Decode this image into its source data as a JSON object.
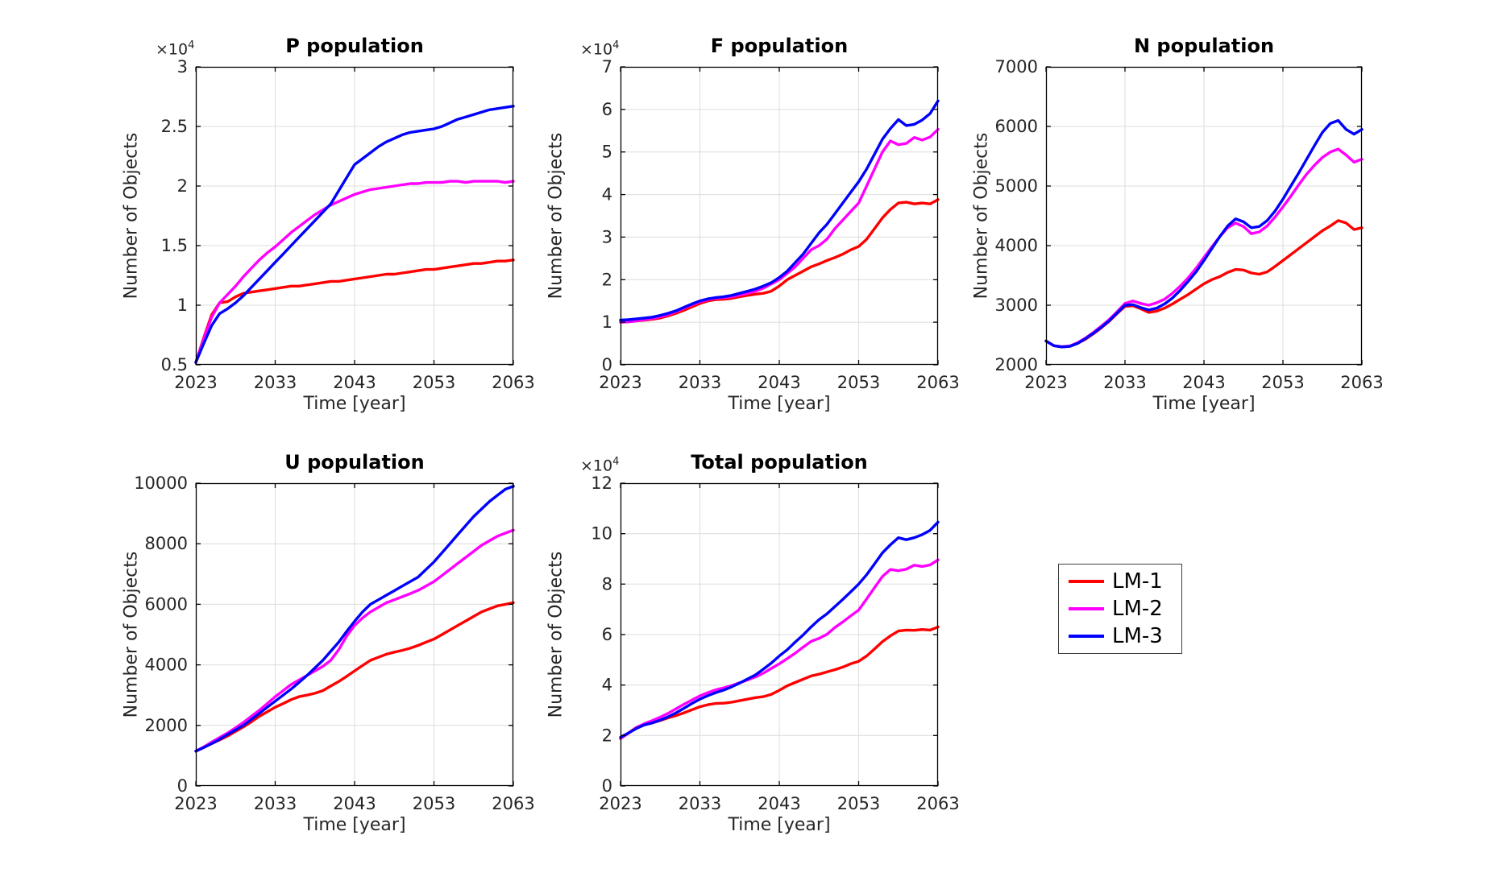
{
  "figure": {
    "background": "#ffffff"
  },
  "colors": {
    "lm1": "#ff0000",
    "lm2": "#ff00ff",
    "lm3": "#0000ff",
    "grid": "#dcdcdc",
    "axis": "#000000",
    "tick_text": "#262626"
  },
  "legend": {
    "entries": [
      {
        "label": "LM-1",
        "color": "#ff0000"
      },
      {
        "label": "LM-2",
        "color": "#ff00ff"
      },
      {
        "label": "LM-3",
        "color": "#0000ff"
      }
    ]
  },
  "chart_data": [
    {
      "id": "p-population",
      "type": "line",
      "title": "P population",
      "xlabel": "Time [year]",
      "ylabel": "Number of Objects",
      "scale_base": "×10",
      "scale_exp": "4",
      "y_unit_multiplier": 10000,
      "x": {
        "start": 2023,
        "end": 2063,
        "step": 1
      },
      "xticks": [
        2023,
        2033,
        2043,
        2053,
        2063
      ],
      "xtick_labels": [
        "2023",
        "2033",
        "2043",
        "2053",
        "2063"
      ],
      "ylim": [
        0.5,
        3
      ],
      "yticks": [
        0.5,
        1,
        1.5,
        2,
        2.5,
        3
      ],
      "ytick_labels": [
        "0.5",
        "1",
        "1.5",
        "2",
        "2.5",
        "3"
      ],
      "grid": true,
      "legend_position": "none",
      "series": [
        {
          "name": "LM-1",
          "color": "#ff0000",
          "values": [
            0.52,
            0.73,
            0.92,
            1.02,
            1.03,
            1.07,
            1.1,
            1.11,
            1.12,
            1.13,
            1.14,
            1.15,
            1.16,
            1.16,
            1.17,
            1.18,
            1.19,
            1.2,
            1.2,
            1.21,
            1.22,
            1.23,
            1.24,
            1.25,
            1.26,
            1.26,
            1.27,
            1.28,
            1.29,
            1.3,
            1.3,
            1.31,
            1.32,
            1.33,
            1.34,
            1.35,
            1.35,
            1.36,
            1.37,
            1.37,
            1.38
          ]
        },
        {
          "name": "LM-2",
          "color": "#ff00ff",
          "values": [
            0.52,
            0.72,
            0.9,
            1.02,
            1.09,
            1.16,
            1.24,
            1.31,
            1.38,
            1.44,
            1.49,
            1.55,
            1.61,
            1.66,
            1.71,
            1.76,
            1.8,
            1.84,
            1.87,
            1.9,
            1.93,
            1.95,
            1.97,
            1.98,
            1.99,
            2.0,
            2.01,
            2.02,
            2.02,
            2.03,
            2.03,
            2.03,
            2.04,
            2.04,
            2.03,
            2.04,
            2.04,
            2.04,
            2.04,
            2.03,
            2.04
          ]
        },
        {
          "name": "LM-3",
          "color": "#0000ff",
          "values": [
            0.52,
            0.68,
            0.83,
            0.93,
            0.97,
            1.02,
            1.08,
            1.15,
            1.22,
            1.29,
            1.36,
            1.43,
            1.5,
            1.57,
            1.64,
            1.71,
            1.78,
            1.85,
            1.96,
            2.07,
            2.18,
            2.23,
            2.28,
            2.33,
            2.37,
            2.4,
            2.43,
            2.45,
            2.46,
            2.47,
            2.48,
            2.5,
            2.53,
            2.56,
            2.58,
            2.6,
            2.62,
            2.64,
            2.65,
            2.66,
            2.67
          ]
        }
      ]
    },
    {
      "id": "f-population",
      "type": "line",
      "title": "F population",
      "xlabel": "Time [year]",
      "ylabel": "Number of Objects",
      "scale_base": "×10",
      "scale_exp": "4",
      "y_unit_multiplier": 10000,
      "x": {
        "start": 2023,
        "end": 2063,
        "step": 1
      },
      "xticks": [
        2023,
        2033,
        2043,
        2053,
        2063
      ],
      "xtick_labels": [
        "2023",
        "2033",
        "2043",
        "2053",
        "2063"
      ],
      "ylim": [
        0,
        7
      ],
      "yticks": [
        0,
        1,
        2,
        3,
        4,
        5,
        6,
        7
      ],
      "ytick_labels": [
        "0",
        "1",
        "2",
        "3",
        "4",
        "5",
        "6",
        "7"
      ],
      "grid": true,
      "legend_position": "none",
      "series": [
        {
          "name": "LM-1",
          "color": "#ff0000",
          "values": [
            1.0,
            1.01,
            1.03,
            1.05,
            1.07,
            1.1,
            1.15,
            1.21,
            1.28,
            1.36,
            1.44,
            1.5,
            1.53,
            1.54,
            1.56,
            1.6,
            1.63,
            1.66,
            1.68,
            1.73,
            1.85,
            2.0,
            2.1,
            2.2,
            2.3,
            2.37,
            2.45,
            2.52,
            2.6,
            2.7,
            2.78,
            2.95,
            3.2,
            3.45,
            3.65,
            3.8,
            3.82,
            3.78,
            3.8,
            3.78,
            3.88
          ]
        },
        {
          "name": "LM-2",
          "color": "#ff00ff",
          "values": [
            1.0,
            1.01,
            1.03,
            1.06,
            1.09,
            1.13,
            1.18,
            1.25,
            1.33,
            1.41,
            1.48,
            1.53,
            1.56,
            1.58,
            1.6,
            1.64,
            1.68,
            1.73,
            1.8,
            1.9,
            2.0,
            2.15,
            2.3,
            2.5,
            2.7,
            2.8,
            2.95,
            3.2,
            3.4,
            3.6,
            3.8,
            4.2,
            4.6,
            5.0,
            5.26,
            5.17,
            5.2,
            5.34,
            5.28,
            5.35,
            5.53
          ]
        },
        {
          "name": "LM-3",
          "color": "#0000ff",
          "values": [
            1.05,
            1.06,
            1.08,
            1.1,
            1.12,
            1.16,
            1.21,
            1.27,
            1.35,
            1.43,
            1.5,
            1.55,
            1.58,
            1.6,
            1.63,
            1.68,
            1.73,
            1.78,
            1.85,
            1.93,
            2.05,
            2.2,
            2.4,
            2.6,
            2.85,
            3.1,
            3.3,
            3.55,
            3.8,
            4.05,
            4.3,
            4.6,
            4.95,
            5.3,
            5.55,
            5.76,
            5.62,
            5.65,
            5.75,
            5.9,
            6.2
          ]
        }
      ]
    },
    {
      "id": "n-population",
      "type": "line",
      "title": "N population",
      "xlabel": "Time [year]",
      "ylabel": "Number of Objects",
      "scale_base": "",
      "scale_exp": "",
      "y_unit_multiplier": 1,
      "x": {
        "start": 2023,
        "end": 2063,
        "step": 1
      },
      "xticks": [
        2023,
        2033,
        2043,
        2053,
        2063
      ],
      "xtick_labels": [
        "2023",
        "2033",
        "2043",
        "2053",
        "2063"
      ],
      "ylim": [
        2000,
        7000
      ],
      "yticks": [
        2000,
        3000,
        4000,
        5000,
        6000,
        7000
      ],
      "ytick_labels": [
        "2000",
        "3000",
        "4000",
        "5000",
        "6000",
        "7000"
      ],
      "grid": true,
      "legend_position": "none",
      "series": [
        {
          "name": "LM-1",
          "color": "#ff0000",
          "values": [
            2400,
            2320,
            2300,
            2310,
            2360,
            2430,
            2520,
            2620,
            2730,
            2860,
            2980,
            2990,
            2940,
            2880,
            2900,
            2950,
            3020,
            3100,
            3180,
            3270,
            3360,
            3430,
            3480,
            3550,
            3600,
            3590,
            3540,
            3520,
            3560,
            3650,
            3750,
            3850,
            3950,
            4050,
            4150,
            4250,
            4330,
            4420,
            4380,
            4270,
            4300
          ]
        },
        {
          "name": "LM-2",
          "color": "#ff00ff",
          "values": [
            2400,
            2320,
            2305,
            2315,
            2370,
            2450,
            2545,
            2650,
            2760,
            2890,
            3030,
            3070,
            3030,
            3000,
            3040,
            3100,
            3200,
            3320,
            3460,
            3620,
            3800,
            3980,
            4150,
            4300,
            4380,
            4320,
            4200,
            4230,
            4330,
            4480,
            4650,
            4830,
            5020,
            5200,
            5350,
            5480,
            5570,
            5620,
            5520,
            5400,
            5450
          ]
        },
        {
          "name": "LM-3",
          "color": "#0000ff",
          "values": [
            2400,
            2320,
            2300,
            2310,
            2360,
            2440,
            2530,
            2630,
            2740,
            2870,
            3000,
            3010,
            2960,
            2920,
            2950,
            3020,
            3120,
            3250,
            3400,
            3560,
            3750,
            3950,
            4150,
            4330,
            4450,
            4400,
            4300,
            4320,
            4420,
            4580,
            4780,
            5000,
            5220,
            5450,
            5680,
            5900,
            6050,
            6100,
            5950,
            5870,
            5950
          ]
        }
      ]
    },
    {
      "id": "u-population",
      "type": "line",
      "title": "U population",
      "xlabel": "Time [year]",
      "ylabel": "Number of Objects",
      "scale_base": "",
      "scale_exp": "",
      "y_unit_multiplier": 1,
      "x": {
        "start": 2023,
        "end": 2063,
        "step": 1
      },
      "xticks": [
        2023,
        2033,
        2043,
        2053,
        2063
      ],
      "xtick_labels": [
        "2023",
        "2033",
        "2043",
        "2053",
        "2063"
      ],
      "ylim": [
        0,
        10000
      ],
      "yticks": [
        0,
        2000,
        4000,
        6000,
        8000,
        10000
      ],
      "ytick_labels": [
        "0",
        "2000",
        "4000",
        "6000",
        "8000",
        "10000"
      ],
      "grid": true,
      "legend_position": "none",
      "series": [
        {
          "name": "LM-1",
          "color": "#ff0000",
          "values": [
            1150,
            1270,
            1400,
            1520,
            1650,
            1800,
            1950,
            2120,
            2300,
            2450,
            2600,
            2720,
            2850,
            2950,
            3000,
            3060,
            3150,
            3300,
            3450,
            3620,
            3800,
            3980,
            4150,
            4250,
            4350,
            4420,
            4480,
            4550,
            4640,
            4750,
            4850,
            5000,
            5150,
            5300,
            5450,
            5600,
            5750,
            5850,
            5950,
            6000,
            6050
          ]
        },
        {
          "name": "LM-2",
          "color": "#ff00ff",
          "values": [
            1150,
            1290,
            1450,
            1600,
            1750,
            1920,
            2100,
            2300,
            2500,
            2720,
            2950,
            3150,
            3350,
            3500,
            3650,
            3800,
            3950,
            4150,
            4500,
            4950,
            5300,
            5550,
            5750,
            5900,
            6050,
            6150,
            6250,
            6350,
            6460,
            6600,
            6750,
            6950,
            7150,
            7350,
            7550,
            7750,
            7950,
            8100,
            8250,
            8350,
            8450
          ]
        },
        {
          "name": "LM-3",
          "color": "#0000ff",
          "values": [
            1150,
            1270,
            1400,
            1540,
            1700,
            1850,
            2000,
            2200,
            2400,
            2600,
            2800,
            3000,
            3200,
            3420,
            3650,
            3900,
            4150,
            4450,
            4750,
            5100,
            5440,
            5750,
            6000,
            6150,
            6300,
            6450,
            6600,
            6750,
            6900,
            7150,
            7400,
            7700,
            8000,
            8300,
            8600,
            8900,
            9150,
            9400,
            9600,
            9800,
            9900
          ]
        }
      ]
    },
    {
      "id": "total-population",
      "type": "line",
      "title": "Total population",
      "xlabel": "Time [year]",
      "ylabel": "Number of Objects",
      "scale_base": "×10",
      "scale_exp": "4",
      "y_unit_multiplier": 10000,
      "x": {
        "start": 2023,
        "end": 2063,
        "step": 1
      },
      "xticks": [
        2023,
        2033,
        2043,
        2053,
        2063
      ],
      "xtick_labels": [
        "2023",
        "2033",
        "2043",
        "2053",
        "2063"
      ],
      "ylim": [
        0,
        12
      ],
      "yticks": [
        0,
        2,
        4,
        6,
        8,
        10,
        12
      ],
      "ytick_labels": [
        "0",
        "2",
        "4",
        "6",
        "8",
        "10",
        "12"
      ],
      "grid": true,
      "legend_position": "none",
      "series": [
        {
          "name": "LM-1",
          "color": "#ff0000",
          "values": [
            1.88,
            2.1,
            2.32,
            2.45,
            2.5,
            2.59,
            2.7,
            2.79,
            2.9,
            3.02,
            3.14,
            3.22,
            3.27,
            3.28,
            3.32,
            3.38,
            3.44,
            3.5,
            3.54,
            3.63,
            3.79,
            3.97,
            4.1,
            4.23,
            4.36,
            4.43,
            4.52,
            4.61,
            4.71,
            4.84,
            4.94,
            5.15,
            5.43,
            5.72,
            5.95,
            6.14,
            6.18,
            6.17,
            6.2,
            6.18,
            6.3
          ]
        },
        {
          "name": "LM-2",
          "color": "#ff00ff",
          "values": [
            1.88,
            2.09,
            2.31,
            2.47,
            2.59,
            2.73,
            2.88,
            3.06,
            3.24,
            3.41,
            3.57,
            3.7,
            3.81,
            3.89,
            3.98,
            4.09,
            4.2,
            4.32,
            4.47,
            4.66,
            4.84,
            5.05,
            5.26,
            5.5,
            5.73,
            5.85,
            6.01,
            6.28,
            6.5,
            6.74,
            6.97,
            7.41,
            7.86,
            8.3,
            8.58,
            8.53,
            8.59,
            8.75,
            8.7,
            8.76,
            8.96
          ]
        },
        {
          "name": "LM-3",
          "color": "#0000ff",
          "values": [
            1.93,
            2.1,
            2.28,
            2.42,
            2.5,
            2.61,
            2.74,
            2.9,
            3.08,
            3.27,
            3.44,
            3.58,
            3.7,
            3.8,
            3.93,
            4.08,
            4.24,
            4.4,
            4.63,
            4.87,
            5.15,
            5.4,
            5.7,
            5.98,
            6.3,
            6.59,
            6.82,
            7.11,
            7.39,
            7.69,
            8.0,
            8.37,
            8.8,
            9.24,
            9.56,
            9.84,
            9.76,
            9.84,
            9.96,
            10.13,
            10.46
          ]
        }
      ]
    }
  ]
}
